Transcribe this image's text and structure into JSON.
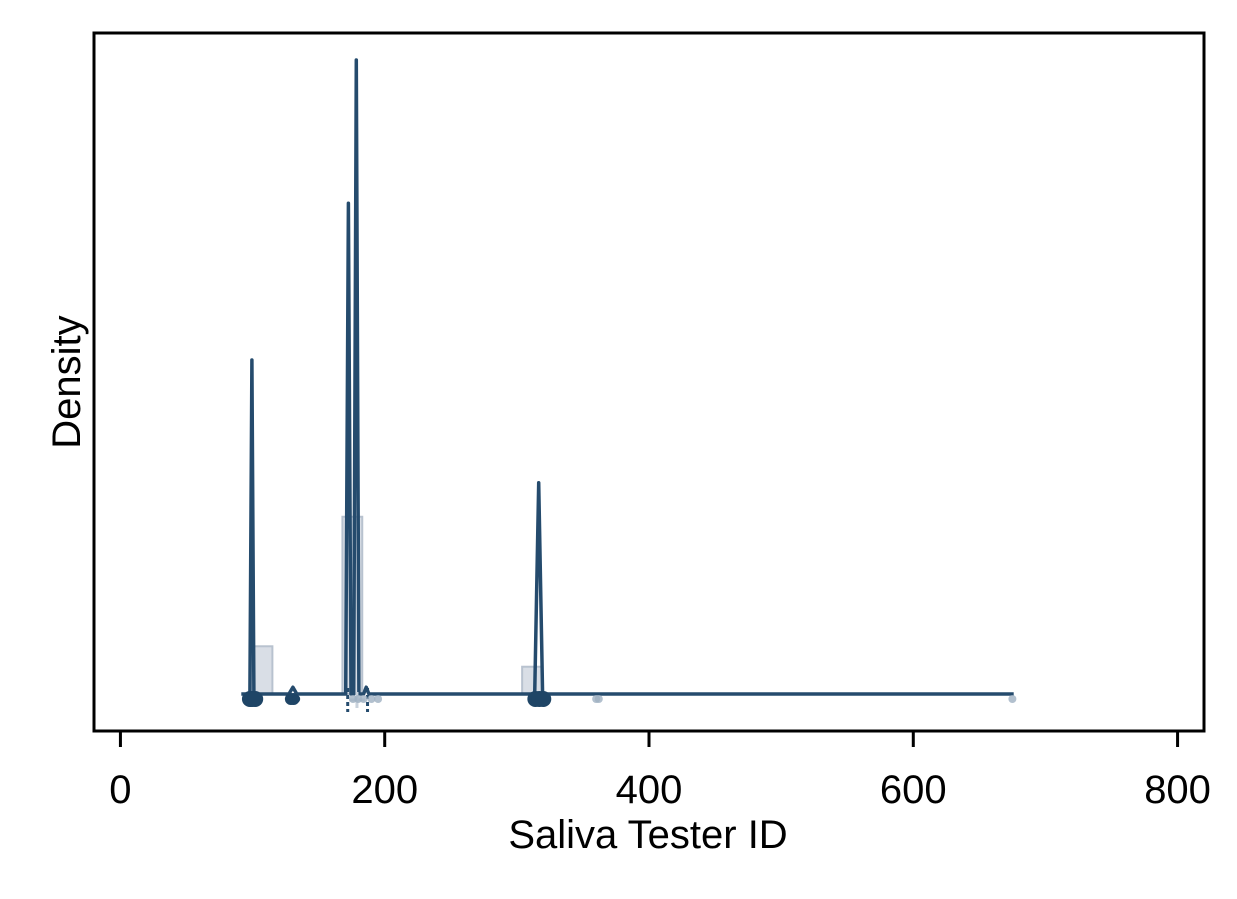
{
  "chart_data": {
    "type": "area",
    "xlabel": "Saliva Tester ID",
    "ylabel": "Density",
    "xlim": [
      -20,
      820
    ],
    "ylim": [
      0,
      1
    ],
    "xticks": [
      0,
      200,
      400,
      600,
      800
    ],
    "yticks_shown": false,
    "grid": false,
    "legend": "none",
    "colors": {
      "density_line": "#254b6d",
      "histogram_fill": "#d9dee6",
      "histogram_edge": "#b8c2cf",
      "points": "#1f4566",
      "points_faint": "#9fb0c2"
    },
    "density_baseline": 0.07,
    "density_line_end_x": 676,
    "density_peaks": [
      {
        "x": 99.5,
        "y": 0.56,
        "half_width": 1.5
      },
      {
        "x": 172.5,
        "y": 0.79,
        "half_width": 2
      },
      {
        "x": 178.5,
        "y": 1.0,
        "half_width": 2
      },
      {
        "x": 316.5,
        "y": 0.38,
        "half_width": 3
      },
      {
        "x": 130.5,
        "y": 0.08,
        "half_width": 3
      },
      {
        "x": 186,
        "y": 0.08,
        "half_width": 2
      }
    ],
    "histogram": [
      {
        "x0": 100,
        "x1": 115,
        "height": 0.14
      },
      {
        "x0": 168,
        "x1": 183,
        "height": 0.33
      },
      {
        "x0": 304,
        "x1": 319,
        "height": 0.11
      }
    ],
    "points": [
      {
        "x": 98,
        "size": "large",
        "faint": false
      },
      {
        "x": 100,
        "size": "large",
        "faint": false
      },
      {
        "x": 102,
        "size": "large",
        "faint": false
      },
      {
        "x": 129,
        "size": "medium",
        "faint": false
      },
      {
        "x": 131,
        "size": "medium",
        "faint": false
      },
      {
        "x": 133,
        "size": "small",
        "faint": false
      },
      {
        "x": 176,
        "size": "small",
        "faint": true
      },
      {
        "x": 180,
        "size": "small",
        "faint": true
      },
      {
        "x": 184,
        "size": "small",
        "faint": true
      },
      {
        "x": 190,
        "size": "small",
        "faint": true
      },
      {
        "x": 195,
        "size": "small",
        "faint": true
      },
      {
        "x": 314,
        "size": "large",
        "faint": false
      },
      {
        "x": 317,
        "size": "large",
        "faint": false
      },
      {
        "x": 320,
        "size": "large",
        "faint": false
      },
      {
        "x": 360,
        "size": "small",
        "faint": true
      },
      {
        "x": 362,
        "size": "small",
        "faint": true
      },
      {
        "x": 675,
        "size": "small",
        "faint": true
      }
    ],
    "reference_lines": [
      {
        "x": 172,
        "style": "dashed"
      },
      {
        "x": 187,
        "style": "dashed"
      }
    ],
    "mean_marker_x": 179
  }
}
